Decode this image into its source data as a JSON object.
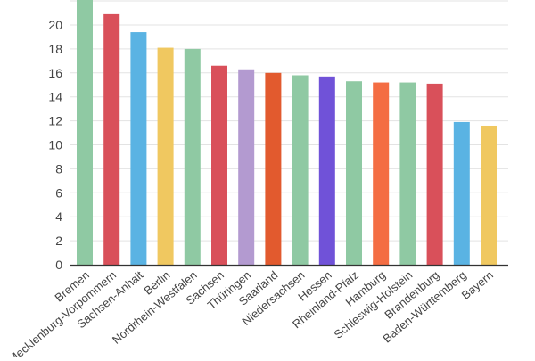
{
  "chart_data": {
    "type": "bar",
    "categories": [
      "Bremen",
      "Mecklenburg-Vorpommern",
      "Sachsen-Anhalt",
      "Berlin",
      "Nordrhein-Westfalen",
      "Sachsen",
      "Thüringen",
      "Saarland",
      "Niedersachsen",
      "Hessen",
      "Rheinland-Pfalz",
      "Hamburg",
      "Schleswig-Holstein",
      "Brandenburg",
      "Baden-Württemberg",
      "Bayern"
    ],
    "values": [
      22.3,
      20.9,
      19.4,
      18.1,
      18.0,
      16.6,
      16.3,
      16.0,
      15.8,
      15.7,
      15.3,
      15.2,
      15.2,
      15.1,
      11.9,
      11.6
    ],
    "colors": [
      "#8fc9a3",
      "#d9505a",
      "#5ab3e3",
      "#f0c860",
      "#8fc9a3",
      "#d9505a",
      "#b39ad0",
      "#e25a2e",
      "#8fc9a3",
      "#7052d8",
      "#8fc9a3",
      "#f46d43",
      "#8fc9a3",
      "#d9505a",
      "#5ab3e3",
      "#f0c860"
    ],
    "yticks": [
      0,
      2,
      4,
      6,
      8,
      10,
      12,
      14,
      16,
      18,
      20
    ],
    "ylim": [
      0,
      22
    ],
    "grid": true,
    "title": "",
    "xlabel": "",
    "ylabel": ""
  }
}
